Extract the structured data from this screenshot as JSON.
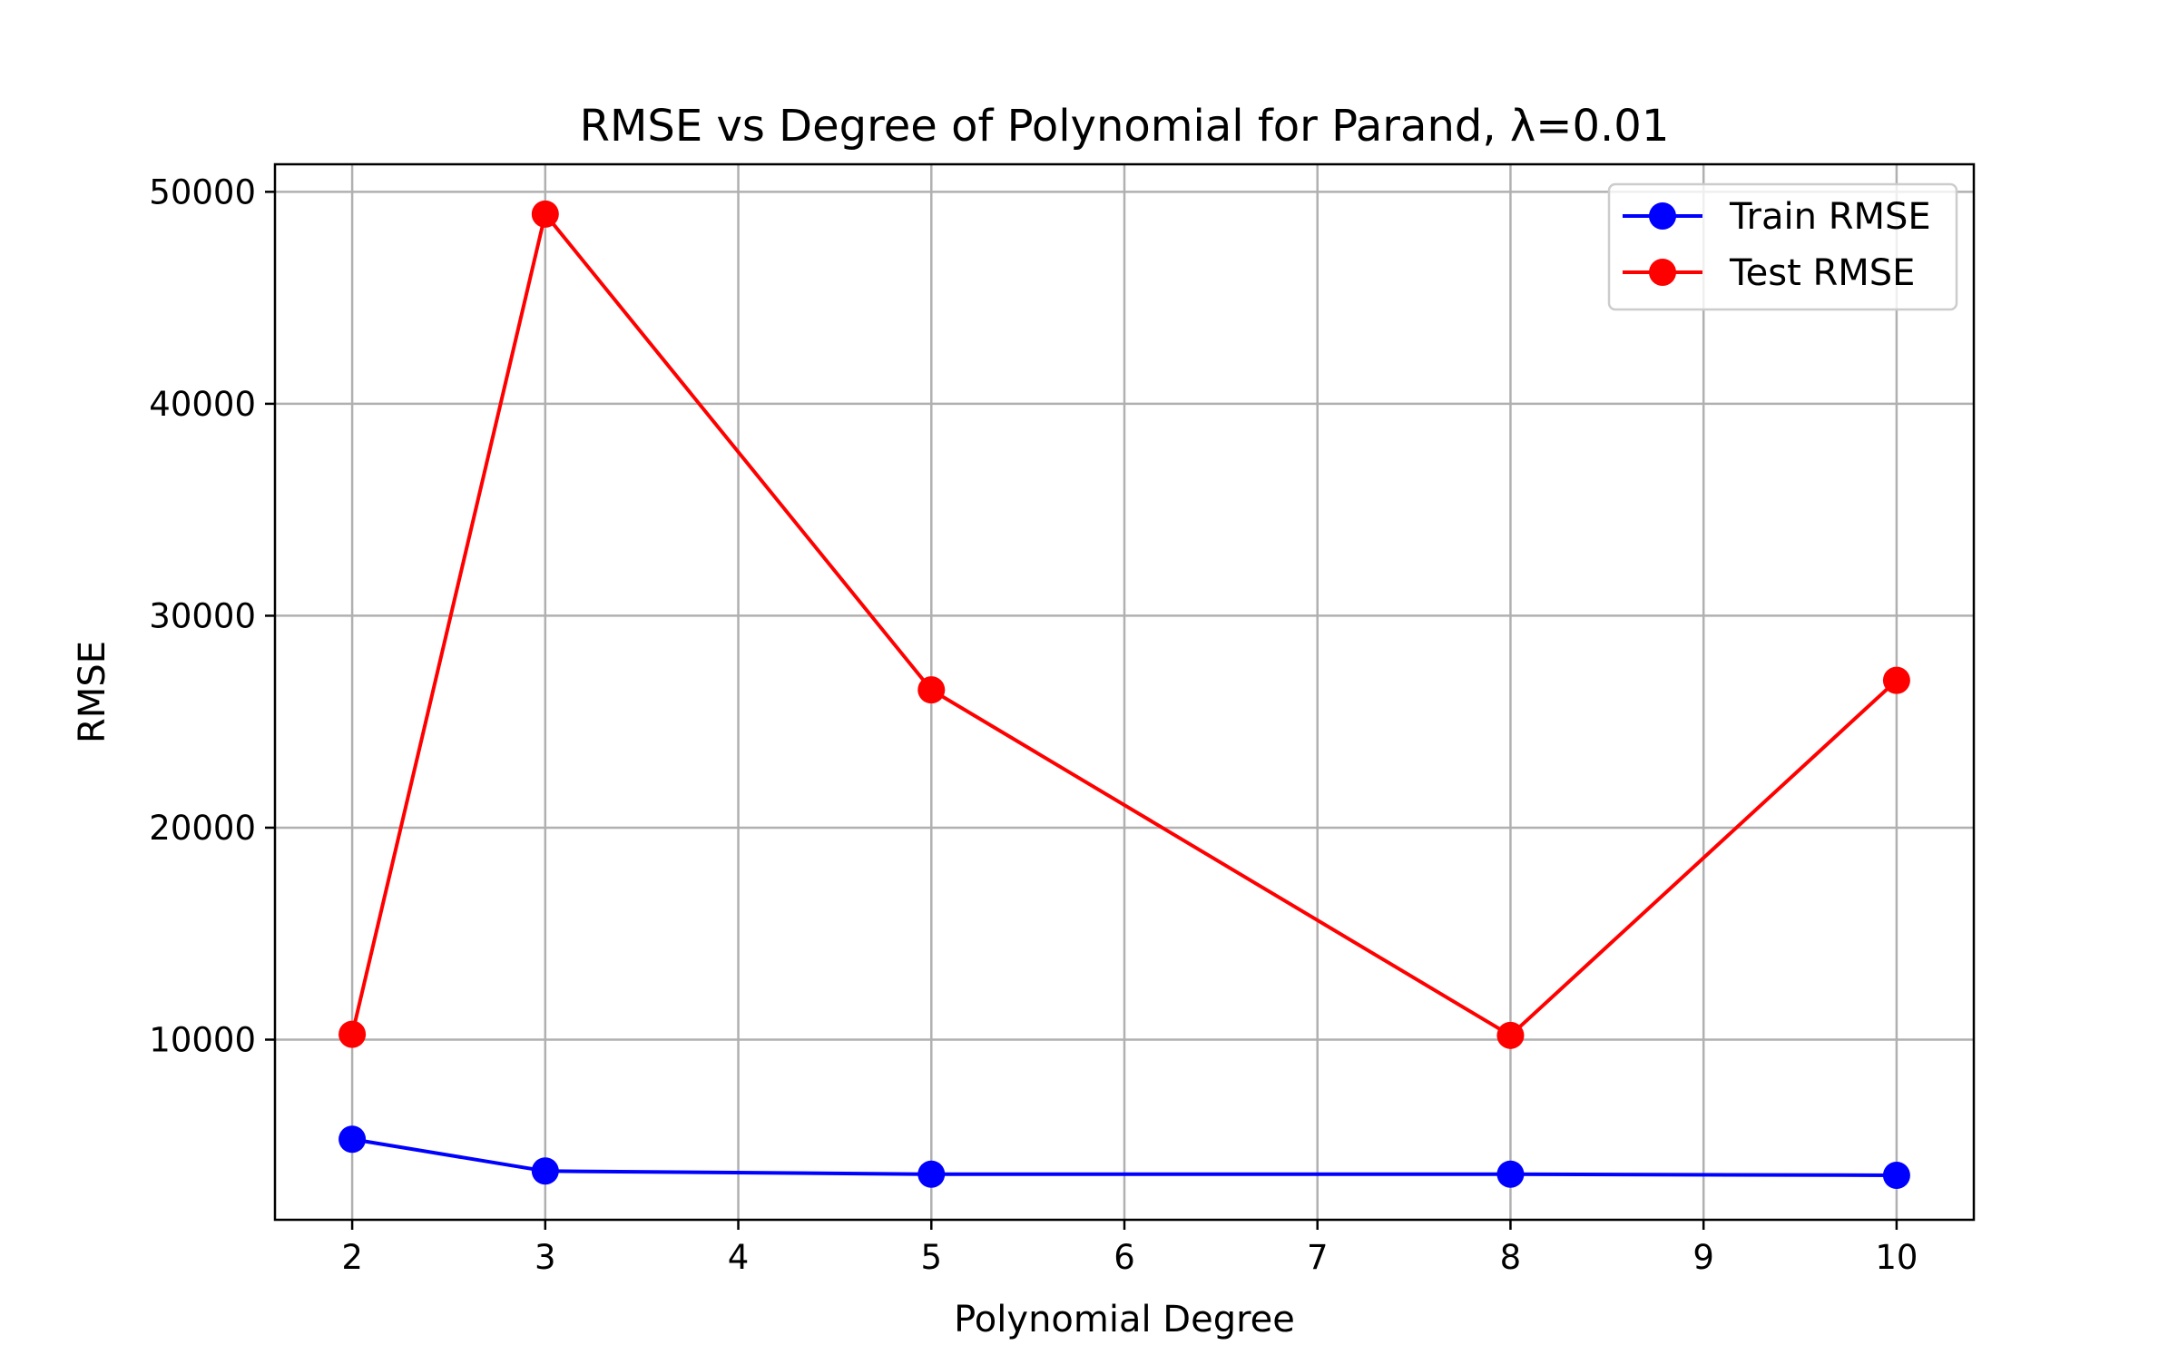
{
  "chart_data": {
    "type": "line",
    "title": "RMSE vs Degree of Polynomial for Parand, λ=0.01",
    "xlabel": "Polynomial Degree",
    "ylabel": "RMSE",
    "x": [
      2,
      3,
      5,
      8,
      10
    ],
    "xlim": [
      1.6,
      10.4
    ],
    "ylim": [
      1500,
      51300
    ],
    "xticks": [
      2,
      3,
      4,
      5,
      6,
      7,
      8,
      9,
      10
    ],
    "yticks": [
      10000,
      20000,
      30000,
      40000,
      50000
    ],
    "grid": true,
    "legend_position": "top-right",
    "series": [
      {
        "name": "Train RMSE",
        "color": "#0000ff",
        "marker": "circle",
        "values": [
          5300,
          3800,
          3650,
          3650,
          3600
        ]
      },
      {
        "name": "Test RMSE",
        "color": "#ff0000",
        "marker": "circle",
        "values": [
          10250,
          48950,
          26500,
          10200,
          26950
        ]
      }
    ]
  }
}
